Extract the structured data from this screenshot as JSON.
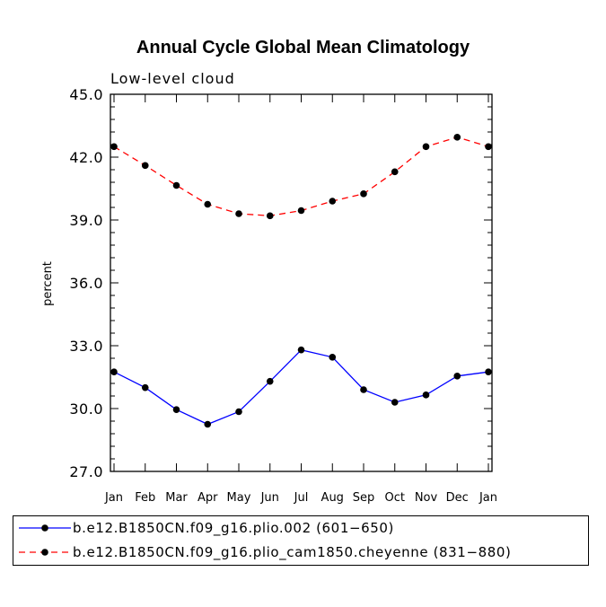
{
  "chart_data": {
    "type": "line",
    "title": "Annual Cycle Global Mean Climatology",
    "subtitle": "Low-level cloud",
    "xlabel": "",
    "ylabel": "percent",
    "ylim": [
      27.0,
      45.0
    ],
    "yticks": [
      "27.0",
      "30.0",
      "33.0",
      "36.0",
      "39.0",
      "42.0",
      "45.0"
    ],
    "categories": [
      "Jan",
      "Feb",
      "Mar",
      "Apr",
      "May",
      "Jun",
      "Jul",
      "Aug",
      "Sep",
      "Oct",
      "Nov",
      "Dec",
      "Jan"
    ],
    "series": [
      {
        "name": "b.e12.B1850CN.f09_g16.plio.002 (601−650)",
        "color": "#0000ff",
        "dash": "solid",
        "values": [
          31.75,
          31.0,
          29.95,
          29.25,
          29.85,
          31.3,
          32.8,
          32.45,
          30.9,
          30.3,
          30.65,
          31.55,
          31.75
        ]
      },
      {
        "name": "b.e12.B1850CN.f09_g16.plio_cam1850.cheyenne (831−880)",
        "color": "#ff0000",
        "dash": "dashed",
        "values": [
          42.5,
          41.6,
          40.65,
          39.75,
          39.3,
          39.2,
          39.45,
          39.9,
          40.25,
          41.3,
          42.5,
          42.95,
          42.5
        ]
      }
    ]
  }
}
